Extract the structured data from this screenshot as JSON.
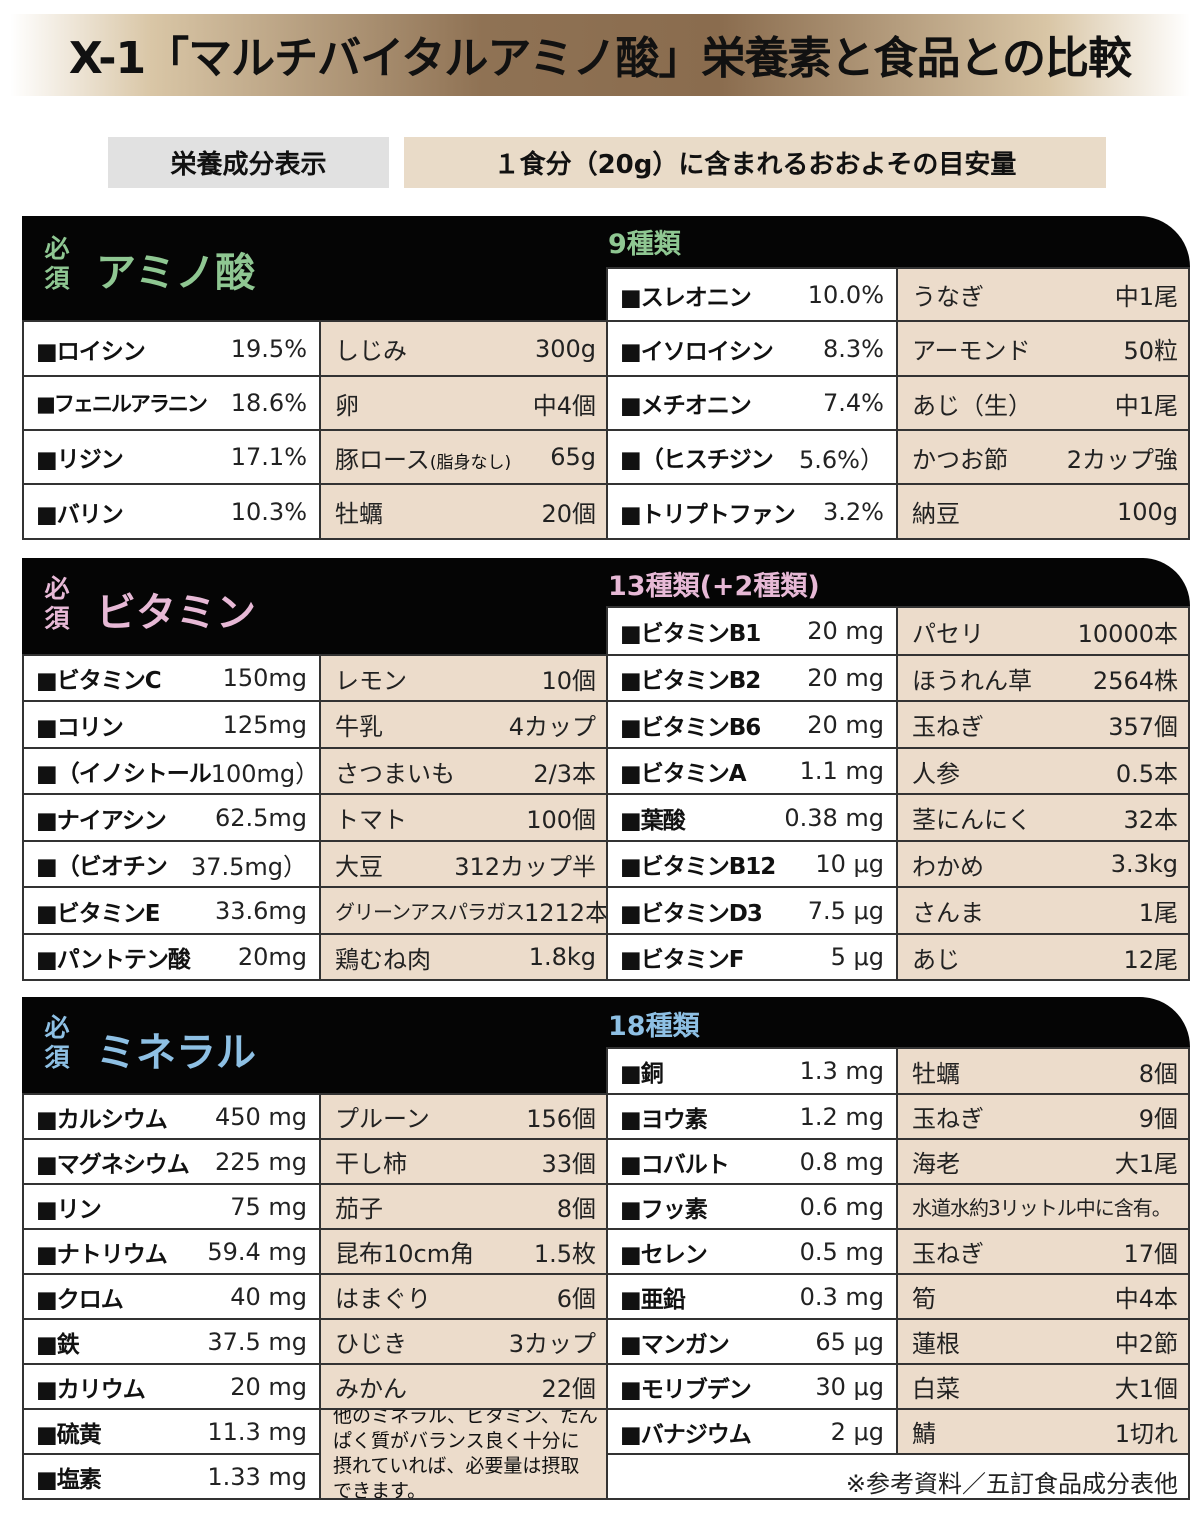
{
  "title": "X-1「マルチバイタルアミノ酸」栄養素と食品との比較",
  "labels": {
    "left": "栄養成分表示",
    "right": "１食分（20g）に含まれるおおよその目安量"
  },
  "colors": {
    "amino": "#8fc792",
    "vitamin": "#e7b9d6",
    "mineral": "#8ec0e4",
    "food_bg": "#ecdccb"
  },
  "amino": {
    "hissu": "必須",
    "title": "アミノ酸",
    "count": "9種類",
    "left": [
      {
        "name": "■ロイシン",
        "value": "19.5%",
        "food": "しじみ",
        "qty": "300g"
      },
      {
        "name": "■フェニルアラニン",
        "value": "18.6%",
        "food": "卵",
        "qty": "中4個"
      },
      {
        "name": "■リジン",
        "value": "17.1%",
        "food": "豚ロース",
        "food_note": "(脂身なし)",
        "qty": "65g"
      },
      {
        "name": "■バリン",
        "value": "10.3%",
        "food": "牡蠣",
        "qty": "20個"
      }
    ],
    "right": [
      {
        "name": "■スレオニン",
        "value": "10.0%",
        "food": "うなぎ",
        "qty": "中1尾"
      },
      {
        "name": "■イソロイシン",
        "value": "8.3%",
        "food": "アーモンド",
        "qty": "50粒"
      },
      {
        "name": "■メチオニン",
        "value": "7.4%",
        "food": "あじ（生）",
        "qty": "中1尾"
      },
      {
        "name": "■（ヒスチジン",
        "value": "5.6%）",
        "food": "かつお節",
        "qty": "2カップ強"
      },
      {
        "name": "■トリプトファン",
        "value": "3.2%",
        "food": "納豆",
        "qty": "100g"
      }
    ]
  },
  "vitamin": {
    "hissu": "必須",
    "title": "ビタミン",
    "count": "13種類(+2種類)",
    "left": [
      {
        "name": "■ビタミンC",
        "value": "150mg",
        "food": "レモン",
        "qty": "10個"
      },
      {
        "name": "■コリン",
        "value": "125mg",
        "food": "牛乳",
        "qty": "4カップ"
      },
      {
        "name": "■（イノシトール",
        "value": "100mg）",
        "food": "さつまいも",
        "qty": "2/3本"
      },
      {
        "name": "■ナイアシン",
        "value": "62.5mg",
        "food": "トマト",
        "qty": "100個"
      },
      {
        "name": "■（ビオチン",
        "value": "37.5mg）",
        "food": "大豆",
        "qty": "312カップ半"
      },
      {
        "name": "■ビタミンE",
        "value": "33.6mg",
        "food": "グリーンアスパラガス",
        "qty": "1212本"
      },
      {
        "name": "■パントテン酸",
        "value": "20mg",
        "food": "鶏むね肉",
        "qty": "1.8kg"
      }
    ],
    "right": [
      {
        "name": "■ビタミンB1",
        "value": "20 mg",
        "food": "パセリ",
        "qty": "10000本"
      },
      {
        "name": "■ビタミンB2",
        "value": "20 mg",
        "food": "ほうれん草",
        "qty": "2564株"
      },
      {
        "name": "■ビタミンB6",
        "value": "20 mg",
        "food": "玉ねぎ",
        "qty": "357個"
      },
      {
        "name": "■ビタミンA",
        "value": "1.1 mg",
        "food": "人参",
        "qty": "0.5本"
      },
      {
        "name": "■葉酸",
        "value": "0.38 mg",
        "food": "茎にんにく",
        "qty": "32本"
      },
      {
        "name": "■ビタミンB12",
        "value": "10 μg",
        "food": "わかめ",
        "qty": "3.3kg"
      },
      {
        "name": "■ビタミンD3",
        "value": "7.5 μg",
        "food": "さんま",
        "qty": "1尾"
      },
      {
        "name": "■ビタミンF",
        "value": "5 μg",
        "food": "あじ",
        "qty": "12尾"
      }
    ]
  },
  "mineral": {
    "hissu": "必須",
    "title": "ミネラル",
    "count": "18種類",
    "left": [
      {
        "name": "■カルシウム",
        "value": "450 mg",
        "food": "プルーン",
        "qty": "156個"
      },
      {
        "name": "■マグネシウム",
        "value": "225 mg",
        "food": "干し柿",
        "qty": "33個"
      },
      {
        "name": "■リン",
        "value": "75 mg",
        "food": "茄子",
        "qty": "8個"
      },
      {
        "name": "■ナトリウム",
        "value": "59.4 mg",
        "food": "昆布10cm角",
        "qty": "1.5枚"
      },
      {
        "name": "■クロム",
        "value": "40 mg",
        "food": "はまぐり",
        "qty": "6個"
      },
      {
        "name": "■鉄",
        "value": "37.5 mg",
        "food": "ひじき",
        "qty": "3カップ"
      },
      {
        "name": "■カリウム",
        "value": "20 mg",
        "food": "みかん",
        "qty": "22個"
      },
      {
        "name": "■硫黄",
        "value": "11.3 mg"
      },
      {
        "name": "■塩素",
        "value": "1.33 mg"
      }
    ],
    "left_note": "他のミネラル、ビタミン、たんぱく質がバランス良く十分に摂れていれば、必要量は摂取できます。",
    "right": [
      {
        "name": "■銅",
        "value": "1.3 mg",
        "food": "牡蠣",
        "qty": "8個"
      },
      {
        "name": "■ヨウ素",
        "value": "1.2 mg",
        "food": "玉ねぎ",
        "qty": "9個"
      },
      {
        "name": "■コバルト",
        "value": "0.8 mg",
        "food": "海老",
        "qty": "大1尾"
      },
      {
        "name": "■フッ素",
        "value": "0.6 mg",
        "food": "水道水約3リットル中に含有。",
        "qty": ""
      },
      {
        "name": "■セレン",
        "value": "0.5 mg",
        "food": "玉ねぎ",
        "qty": "17個"
      },
      {
        "name": "■亜鉛",
        "value": "0.3 mg",
        "food": "筍",
        "qty": "中4本"
      },
      {
        "name": "■マンガン",
        "value": "65 μg",
        "food": "蓮根",
        "qty": "中2節"
      },
      {
        "name": "■モリブデン",
        "value": "30 μg",
        "food": "白菜",
        "qty": "大1個"
      },
      {
        "name": "■バナジウム",
        "value": "2 μg",
        "food": "鯖",
        "qty": "1切れ"
      }
    ],
    "footnote": "※参考資料／五訂食品成分表他"
  }
}
